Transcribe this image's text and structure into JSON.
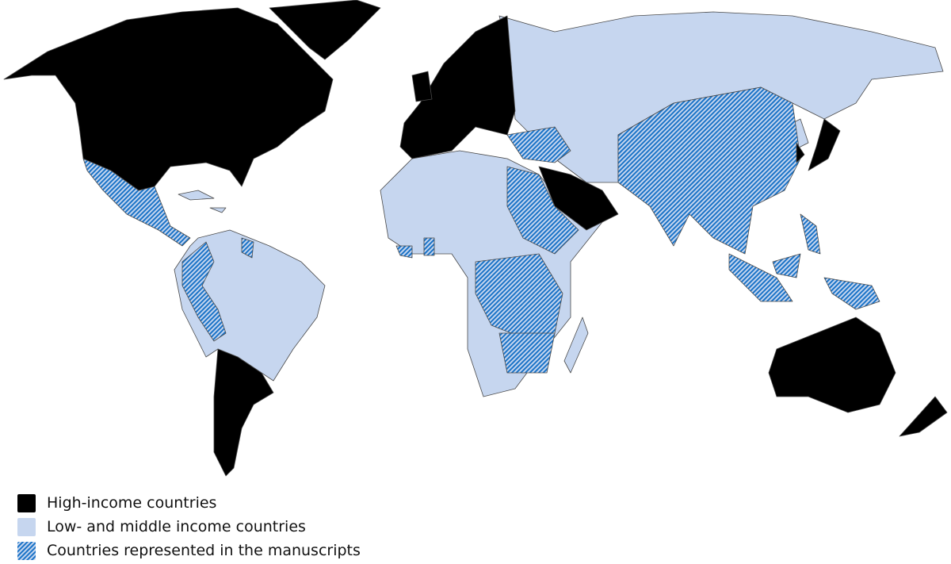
{
  "colors": {
    "high_income": "#000000",
    "low_middle_income": "#c6d6ef",
    "represented": "#1a73c7",
    "border": "#4a4a4a"
  },
  "legend": {
    "position": "bottom-left",
    "items": [
      {
        "label": "High-income countries",
        "style": "solid-black"
      },
      {
        "label": "Low- and middle income countries",
        "style": "solid-light-blue"
      },
      {
        "label": "Countries represented in the manuscripts",
        "style": "blue-hatched"
      }
    ]
  }
}
